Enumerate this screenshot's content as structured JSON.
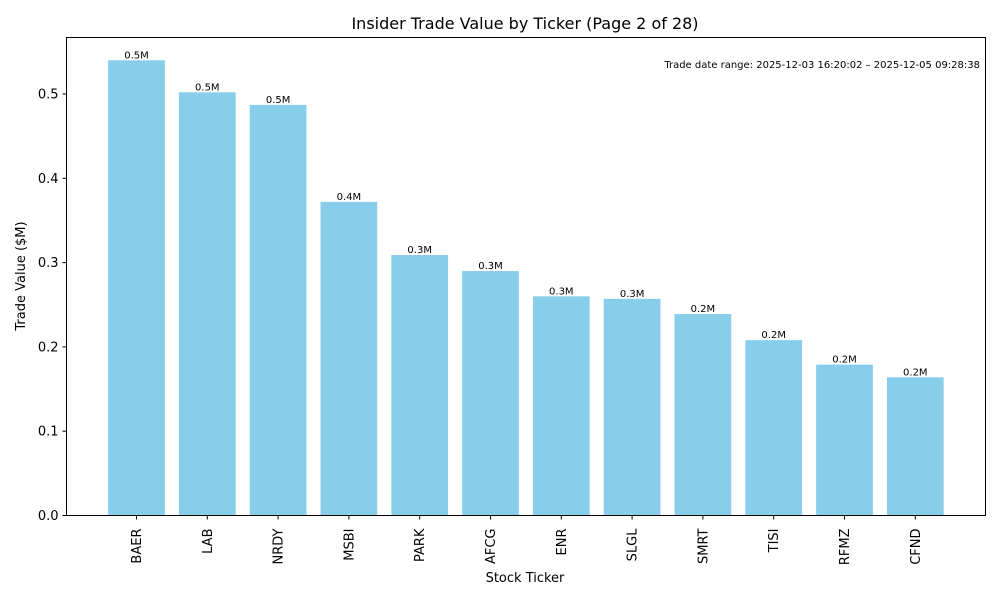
{
  "chart_data": {
    "type": "bar",
    "title": "Insider Trade Value by Ticker (Page 2 of 28)",
    "xlabel": "Stock Ticker",
    "ylabel": "Trade Value ($M)",
    "categories": [
      "BAER",
      "LAB",
      "NRDY",
      "MSBI",
      "PARK",
      "AFCG",
      "ENR",
      "SLGL",
      "SMRT",
      "TISI",
      "RFMZ",
      "CFND"
    ],
    "values": [
      0.54,
      0.502,
      0.487,
      0.372,
      0.309,
      0.29,
      0.26,
      0.257,
      0.239,
      0.208,
      0.179,
      0.164
    ],
    "data_labels": [
      "0.5M",
      "0.5M",
      "0.5M",
      "0.4M",
      "0.3M",
      "0.3M",
      "0.3M",
      "0.3M",
      "0.2M",
      "0.2M",
      "0.2M",
      "0.2M"
    ],
    "yticks": [
      "0.0",
      "0.1",
      "0.2",
      "0.3",
      "0.4",
      "0.5"
    ],
    "ylim": [
      0,
      0.567
    ],
    "grid": false,
    "bar_color": "#87ceeb",
    "annotation": "Trade date range: 2025-12-03 16:20:02 – 2025-12-05 09:28:38"
  }
}
